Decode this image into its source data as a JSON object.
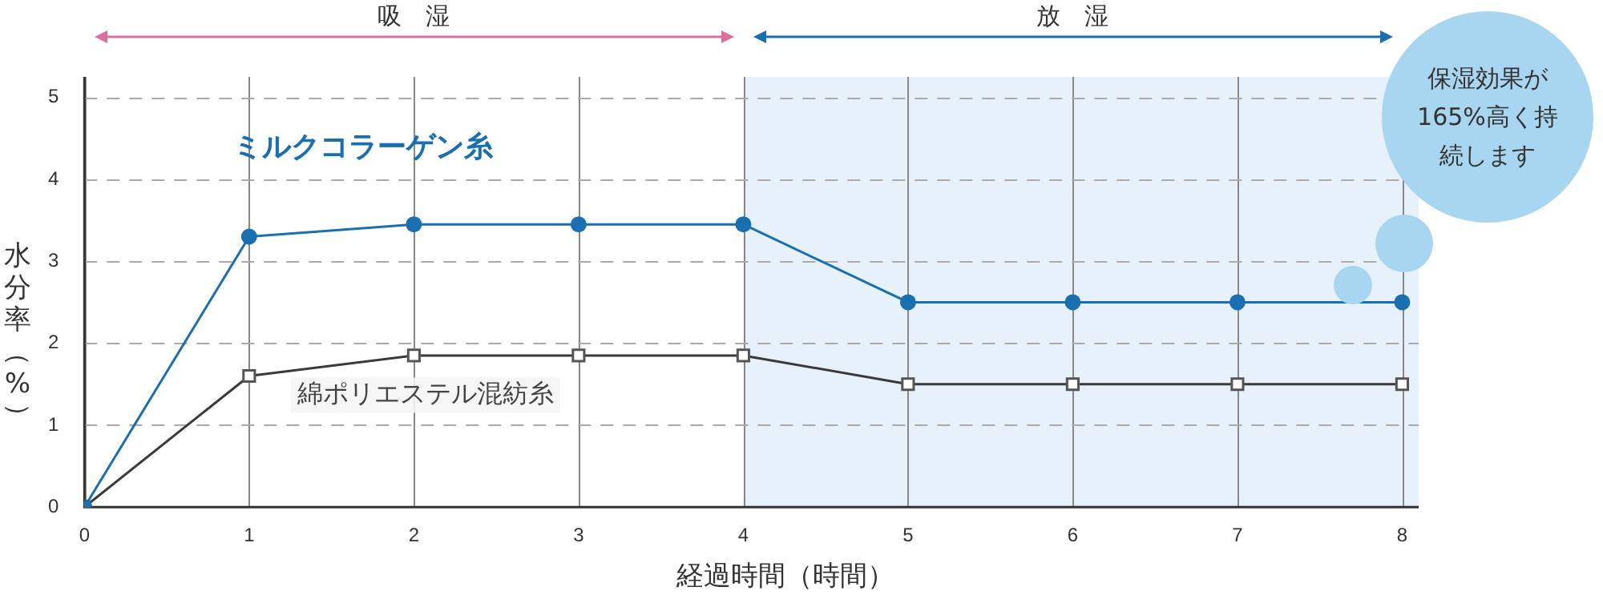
{
  "chart_data": {
    "type": "line",
    "xlabel": "経過時間（時間）",
    "ylabel": "水分率（%）",
    "x": [
      0,
      1,
      2,
      3,
      4,
      5,
      6,
      7,
      8
    ],
    "xlim": [
      0,
      8.1
    ],
    "xticks": [
      0,
      1,
      2,
      3,
      4,
      5,
      6,
      7,
      8
    ],
    "ylim": [
      0,
      5.25
    ],
    "yticks": [
      0,
      1,
      2,
      3,
      4,
      5
    ],
    "grid": true,
    "legend": false,
    "series": [
      {
        "name": "ミルクコラーゲン糸",
        "color": "#1a6fb0",
        "marker": "circle",
        "values": [
          0,
          3.3,
          3.45,
          3.45,
          3.45,
          2.5,
          2.5,
          2.5,
          2.5
        ]
      },
      {
        "name": "綿ポリエステル混紡糸",
        "color": "#3a3a3a",
        "marker": "square",
        "values": [
          0,
          1.6,
          1.85,
          1.85,
          1.85,
          1.5,
          1.5,
          1.5,
          1.5
        ]
      }
    ],
    "bands": [
      {
        "axis": "x",
        "from": 4,
        "to": 8.1,
        "label": null,
        "color": "#e6f1fb"
      }
    ],
    "annotations": [
      "吸　湿",
      "放　湿",
      "保湿効果が165%高く持続します"
    ]
  }
}
